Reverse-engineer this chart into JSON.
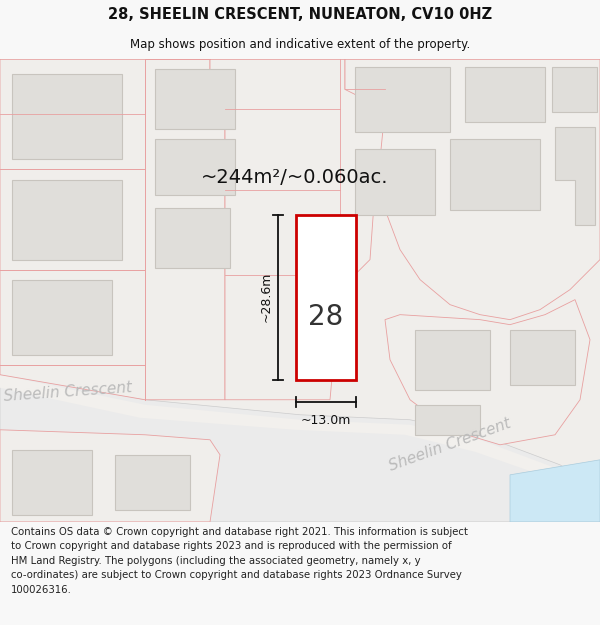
{
  "title_line1": "28, SHEELIN CRESCENT, NUNEATON, CV10 0HZ",
  "title_line2": "Map shows position and indicative extent of the property.",
  "area_text": "~244m²/~0.060ac.",
  "label_28": "28",
  "label_height": "~28.6m",
  "label_width": "~13.0m",
  "street_label_left": "Sheelin Crescent",
  "street_label_right": "Sheelin Crescent",
  "footer_text": "Contains OS data © Crown copyright and database right 2021. This information is subject\nto Crown copyright and database rights 2023 and is reproduced with the permission of\nHM Land Registry. The polygons (including the associated geometry, namely x, y\nco-ordinates) are subject to Crown copyright and database rights 2023 Ordnance Survey\n100026316.",
  "bg_color": "#f8f8f8",
  "map_bg": "#f0eeeb",
  "road_fill": "#e8e4de",
  "plot_stroke": "#cc0000",
  "plot_fill": "#ffffff",
  "building_fill": "#e0deda",
  "building_stroke": "#c8c4be",
  "boundary_color": "#e8a0a0",
  "dim_color": "#111111",
  "street_text_color": "#bbbbbb",
  "footer_color": "#222222",
  "title_color": "#111111",
  "water_color": "#cce8f5"
}
